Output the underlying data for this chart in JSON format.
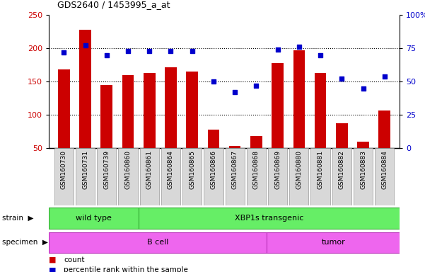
{
  "title": "GDS2640 / 1453995_a_at",
  "samples": [
    "GSM160730",
    "GSM160731",
    "GSM160739",
    "GSM160860",
    "GSM160861",
    "GSM160864",
    "GSM160865",
    "GSM160866",
    "GSM160867",
    "GSM160868",
    "GSM160869",
    "GSM160880",
    "GSM160881",
    "GSM160882",
    "GSM160883",
    "GSM160884"
  ],
  "counts": [
    168,
    228,
    145,
    160,
    163,
    172,
    165,
    78,
    54,
    68,
    178,
    197,
    163,
    88,
    60,
    107
  ],
  "percentiles": [
    72,
    77,
    70,
    73,
    73,
    73,
    73,
    50,
    42,
    47,
    74,
    76,
    70,
    52,
    45,
    54
  ],
  "strain_groups": [
    {
      "label": "wild type",
      "start": 0,
      "end": 4
    },
    {
      "label": "XBP1s transgenic",
      "start": 4,
      "end": 16
    }
  ],
  "specimen_groups": [
    {
      "label": "B cell",
      "start": 0,
      "end": 10
    },
    {
      "label": "tumor",
      "start": 10,
      "end": 16
    }
  ],
  "ylim_left": [
    50,
    250
  ],
  "ylim_right": [
    0,
    100
  ],
  "yticks_left": [
    50,
    100,
    150,
    200,
    250
  ],
  "yticks_right": [
    0,
    25,
    50,
    75,
    100
  ],
  "ytick_right_labels": [
    "0",
    "25",
    "50",
    "75",
    "100%"
  ],
  "bar_color": "#cc0000",
  "dot_color": "#0000cc",
  "bar_width": 0.55,
  "strain_color": "#66ee66",
  "specimen_color": "#ee66ee",
  "grid_lines": [
    100,
    150,
    200
  ],
  "legend_count_color": "#cc0000",
  "legend_dot_color": "#0000cc"
}
